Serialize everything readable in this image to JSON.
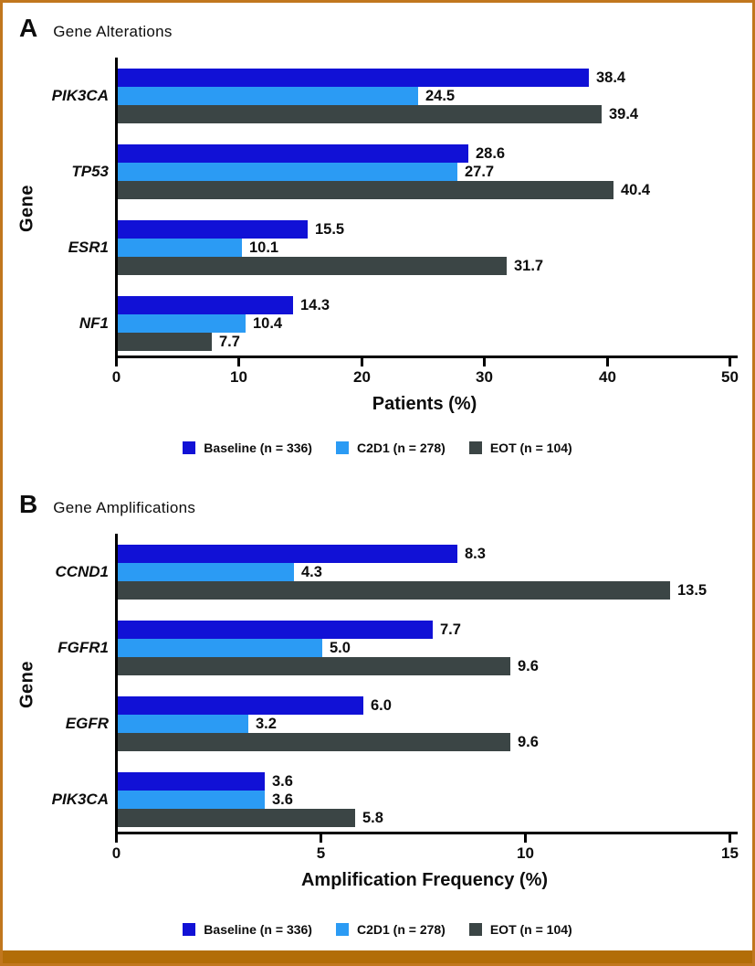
{
  "figure": {
    "border_color": "#c1771e",
    "bottom_bar_color": "#b26d08",
    "background": "#ffffff",
    "axis_color": "#000000"
  },
  "legend": {
    "items": [
      {
        "label": "Baseline (n = 336)",
        "color": "#1111d6"
      },
      {
        "label": "C2D1 (n = 278)",
        "color": "#2b9bf4"
      },
      {
        "label": "EOT (n = 104)",
        "color": "#3b4545"
      }
    ]
  },
  "panels": [
    {
      "letter": "A",
      "title": "Gene Alterations"
    },
    {
      "letter": "B",
      "title": "Gene Amplifications"
    }
  ],
  "chart_data": [
    {
      "type": "bar",
      "orientation": "horizontal",
      "title": "Gene Alterations",
      "categories": [
        "PIK3CA",
        "TP53",
        "ESR1",
        "NF1"
      ],
      "series": [
        {
          "name": "Baseline (n = 336)",
          "color": "#1111d6",
          "values": [
            38.4,
            28.6,
            15.5,
            14.3
          ]
        },
        {
          "name": "C2D1 (n = 278)",
          "color": "#2b9bf4",
          "values": [
            24.5,
            27.7,
            10.1,
            10.4
          ]
        },
        {
          "name": "EOT (n = 104)",
          "color": "#3b4545",
          "values": [
            39.4,
            40.4,
            31.7,
            7.7
          ]
        }
      ],
      "xlabel": "Patients (%)",
      "ylabel": "Gene",
      "xlim": [
        0,
        50
      ],
      "xticks": [
        0,
        10,
        20,
        30,
        40,
        50
      ],
      "value_labels": true,
      "value_label_decimals": 1,
      "legend_position": "bottom",
      "grid": false
    },
    {
      "type": "bar",
      "orientation": "horizontal",
      "title": "Gene Amplifications",
      "categories": [
        "CCND1",
        "FGFR1",
        "EGFR",
        "PIK3CA"
      ],
      "series": [
        {
          "name": "Baseline (n = 336)",
          "color": "#1111d6",
          "values": [
            8.3,
            7.7,
            6.0,
            3.6
          ]
        },
        {
          "name": "C2D1 (n = 278)",
          "color": "#2b9bf4",
          "values": [
            4.3,
            5.0,
            3.2,
            3.6
          ]
        },
        {
          "name": "EOT (n = 104)",
          "color": "#3b4545",
          "values": [
            13.5,
            9.6,
            9.6,
            5.8
          ]
        }
      ],
      "xlabel": "Amplification Frequency (%)",
      "ylabel": "Gene",
      "xlim": [
        0,
        15
      ],
      "xticks": [
        0,
        5,
        10,
        15
      ],
      "value_labels": true,
      "value_label_decimals": 1,
      "legend_position": "bottom",
      "grid": false
    }
  ]
}
